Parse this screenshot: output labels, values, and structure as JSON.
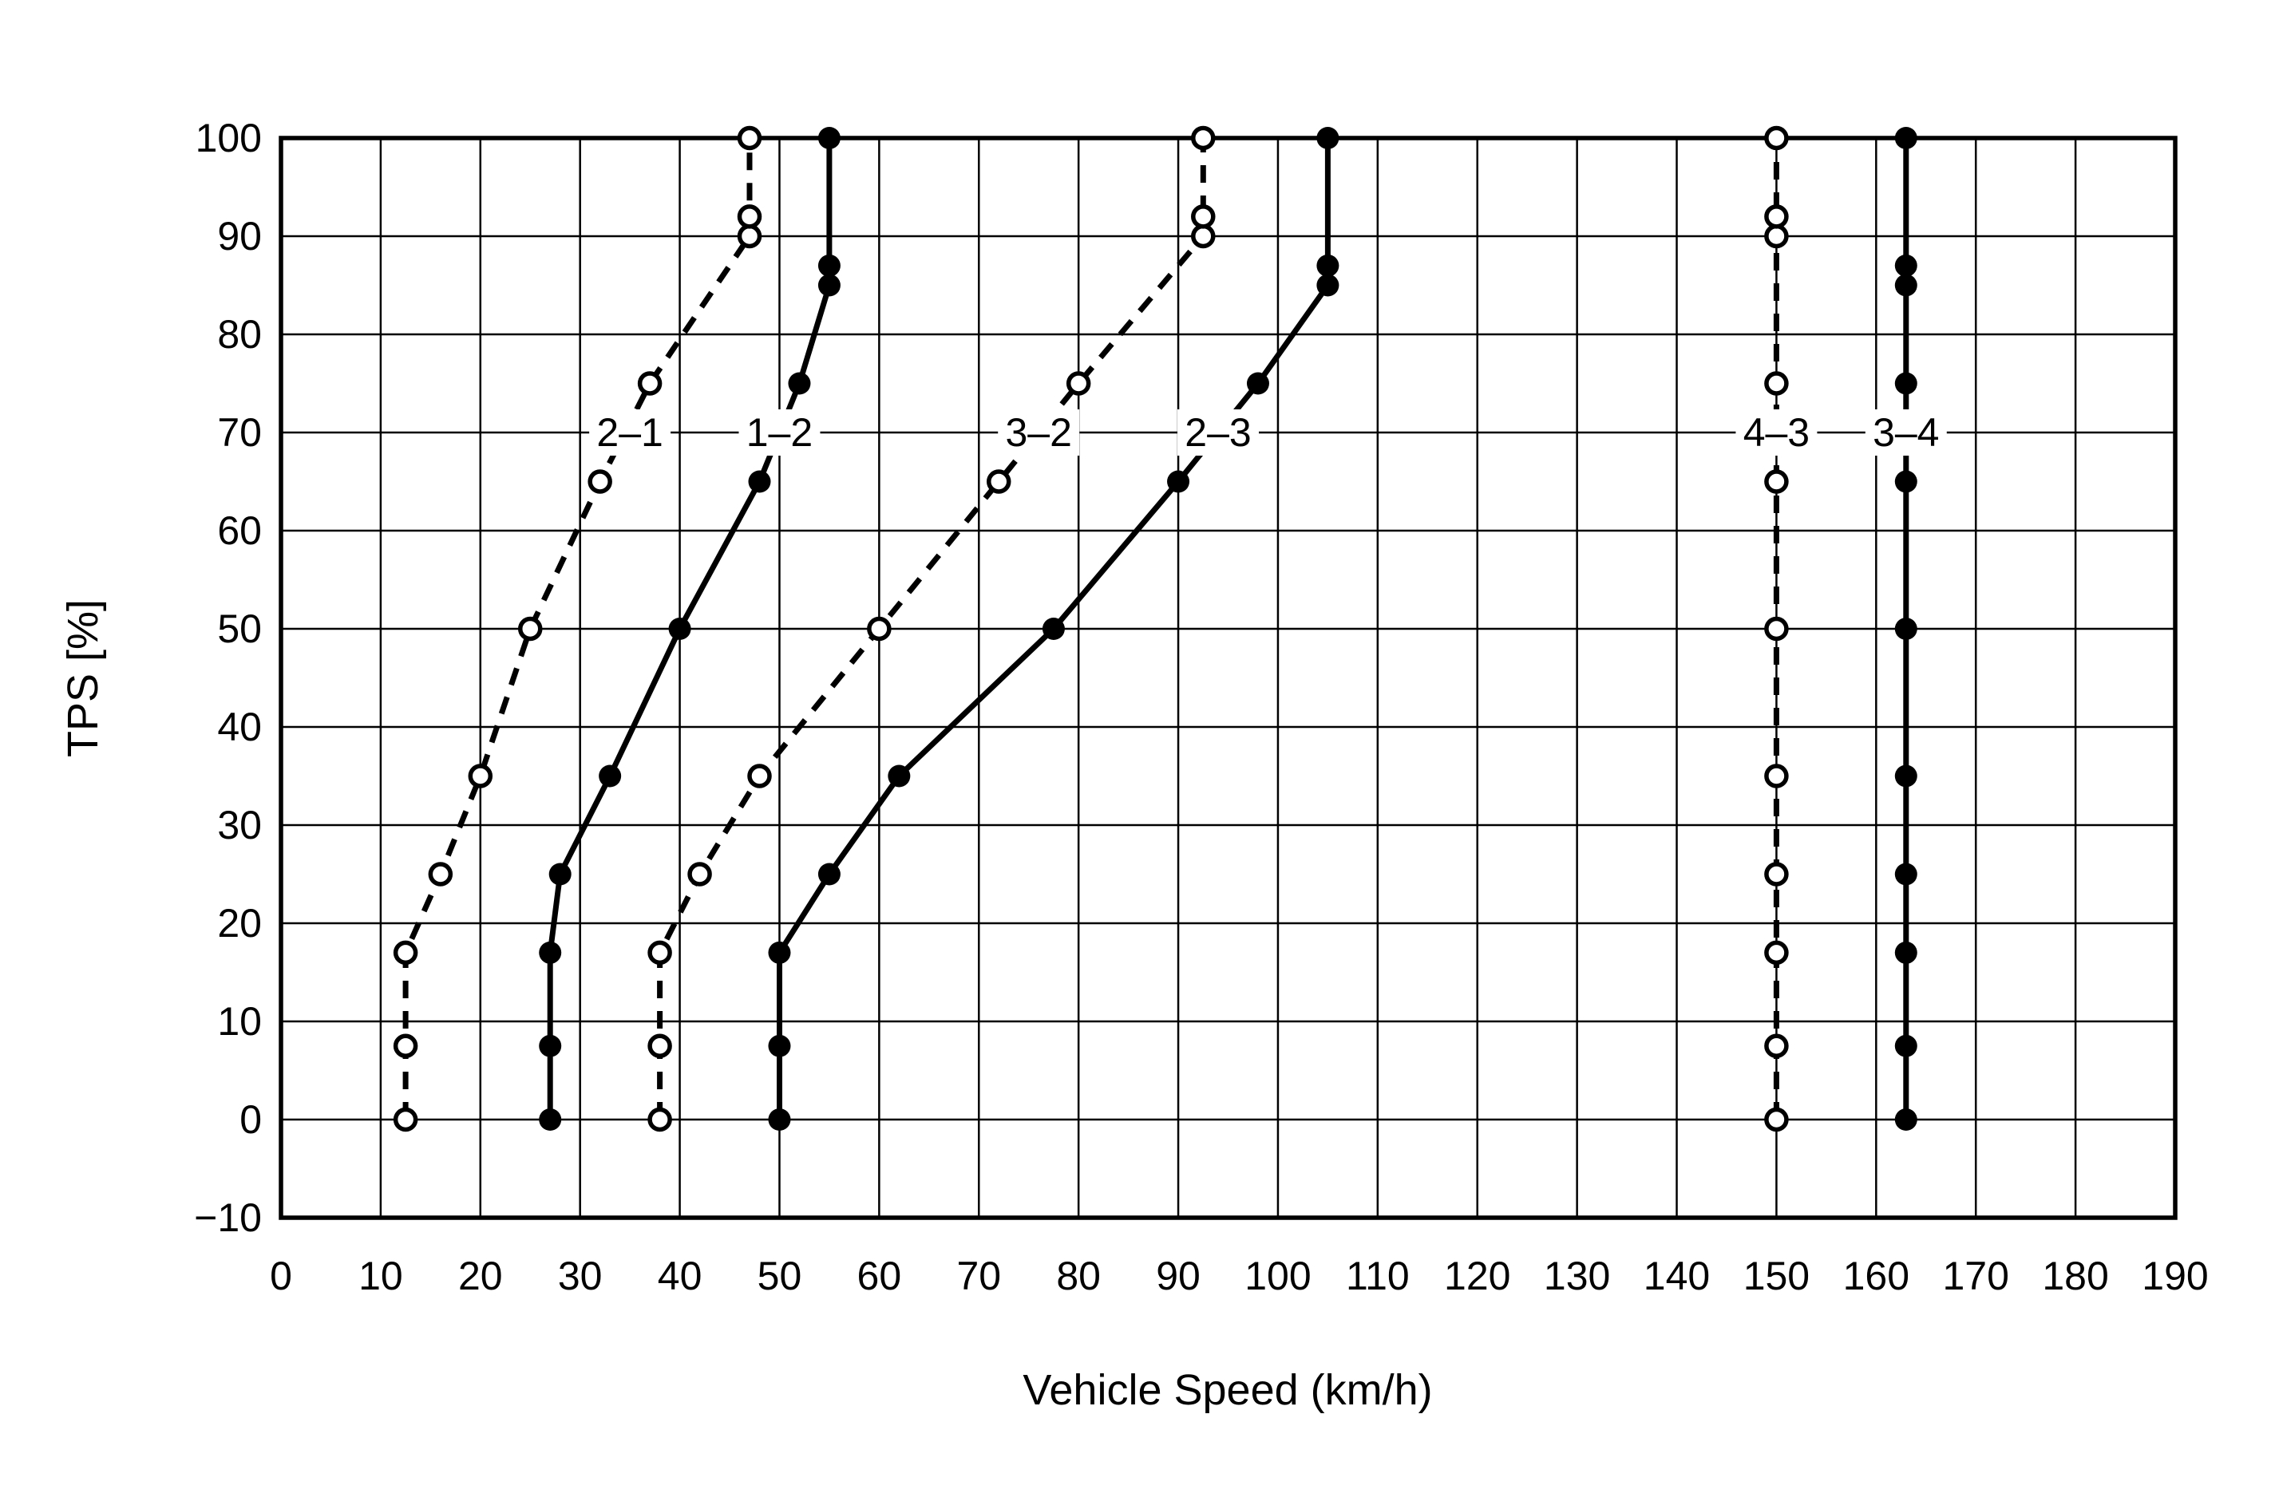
{
  "page": {
    "background_color": "#ffffff",
    "ink_color": "#000000"
  },
  "chart_data": {
    "type": "line",
    "title": "",
    "xlabel": "Vehicle Speed (km/h)",
    "ylabel": "TPS [%]",
    "xlim": [
      0,
      190
    ],
    "ylim": [
      -10,
      100
    ],
    "x_tick_step": 10,
    "y_tick_step": 10,
    "x_tick_labels": [
      "0",
      "10",
      "20",
      "30",
      "40",
      "50",
      "60",
      "70",
      "80",
      "90",
      "100",
      "110",
      "120",
      "130",
      "140",
      "150",
      "160",
      "170",
      "180",
      "190"
    ],
    "y_tick_labels": [
      "−10",
      "0",
      "10",
      "20",
      "30",
      "40",
      "50",
      "60",
      "70",
      "80",
      "90",
      "100"
    ],
    "grid": true,
    "legend_position": "inline-labels-on-curves",
    "series_label_tps": 70,
    "series": [
      {
        "name": "2–1",
        "kind": "downshift",
        "line": "dashed",
        "marker": "open-circle",
        "label_x": 35,
        "label_y": 70,
        "points": [
          [
            12.5,
            0
          ],
          [
            12.5,
            7.5
          ],
          [
            12.5,
            17
          ],
          [
            16,
            25
          ],
          [
            20,
            35
          ],
          [
            25,
            50
          ],
          [
            32,
            65
          ],
          [
            37,
            75
          ],
          [
            47,
            90
          ],
          [
            47,
            92
          ],
          [
            47,
            100
          ]
        ]
      },
      {
        "name": "1–2",
        "kind": "upshift",
        "line": "solid",
        "marker": "filled-circle",
        "label_x": 50,
        "label_y": 70,
        "points": [
          [
            27,
            0
          ],
          [
            27,
            7.5
          ],
          [
            27,
            17
          ],
          [
            28,
            25
          ],
          [
            33,
            35
          ],
          [
            40,
            50
          ],
          [
            48,
            65
          ],
          [
            52,
            75
          ],
          [
            55,
            85
          ],
          [
            55,
            87
          ],
          [
            55,
            100
          ]
        ]
      },
      {
        "name": "3–2",
        "kind": "downshift",
        "line": "dashed",
        "marker": "open-circle",
        "label_x": 76,
        "label_y": 70,
        "points": [
          [
            38,
            0
          ],
          [
            38,
            7.5
          ],
          [
            38,
            17
          ],
          [
            42,
            25
          ],
          [
            48,
            35
          ],
          [
            60,
            50
          ],
          [
            72,
            65
          ],
          [
            80,
            75
          ],
          [
            92.5,
            90
          ],
          [
            92.5,
            92
          ],
          [
            92.5,
            100
          ]
        ]
      },
      {
        "name": "2–3",
        "kind": "upshift",
        "line": "solid",
        "marker": "filled-circle",
        "label_x": 94,
        "label_y": 70,
        "points": [
          [
            50,
            0
          ],
          [
            50,
            7.5
          ],
          [
            50,
            17
          ],
          [
            55,
            25
          ],
          [
            62,
            35
          ],
          [
            77.5,
            50
          ],
          [
            90,
            65
          ],
          [
            98,
            75
          ],
          [
            105,
            85
          ],
          [
            105,
            87
          ],
          [
            105,
            100
          ]
        ]
      },
      {
        "name": "4–3",
        "kind": "downshift",
        "line": "dashed",
        "marker": "open-circle",
        "label_x": 150,
        "label_y": 70,
        "points": [
          [
            150,
            0
          ],
          [
            150,
            7.5
          ],
          [
            150,
            17
          ],
          [
            150,
            25
          ],
          [
            150,
            35
          ],
          [
            150,
            50
          ],
          [
            150,
            65
          ],
          [
            150,
            75
          ],
          [
            150,
            90
          ],
          [
            150,
            92
          ],
          [
            150,
            100
          ]
        ]
      },
      {
        "name": "3–4",
        "kind": "upshift",
        "line": "solid",
        "marker": "filled-circle",
        "label_x": 163,
        "label_y": 70,
        "points": [
          [
            163,
            0
          ],
          [
            163,
            7.5
          ],
          [
            163,
            17
          ],
          [
            163,
            25
          ],
          [
            163,
            35
          ],
          [
            163,
            50
          ],
          [
            163,
            65
          ],
          [
            163,
            75
          ],
          [
            163,
            85
          ],
          [
            163,
            87
          ],
          [
            163,
            100
          ]
        ]
      }
    ]
  }
}
